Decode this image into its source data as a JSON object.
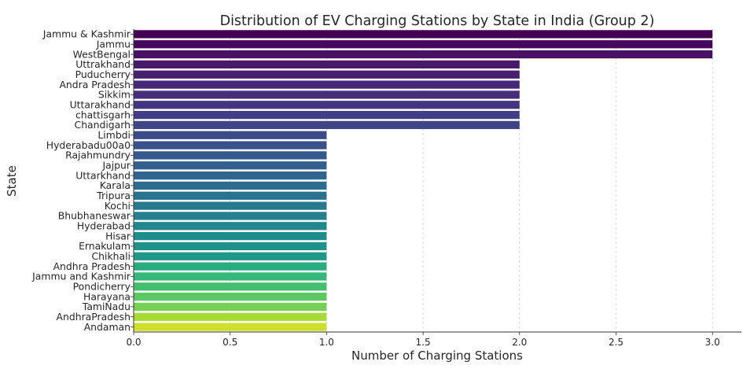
{
  "chart_data": {
    "type": "bar",
    "orientation": "horizontal",
    "title": "Distribution of EV Charging Stations by State in India (Group 2)",
    "xlabel": "Number of Charging Stations",
    "ylabel": "State",
    "xlim": [
      0,
      3.15
    ],
    "x_ticks": [
      "0.0",
      "0.5",
      "1.0",
      "1.5",
      "2.0",
      "2.5",
      "3.0"
    ],
    "grid": "vertical dashed",
    "colormap": "viridis",
    "categories": [
      "Jammu & Kashmir",
      "Jammu",
      "WestBengal",
      "Uttrakhand",
      "Puducherry",
      "Andra Pradesh",
      "Sikkim",
      "Uttarakhand ",
      "chattisgarh",
      "Chandigarh",
      "Limbdi",
      "Hyderabadu00a0",
      "Rajahmundry",
      "Jajpur",
      "Uttarkhand",
      "Karala",
      "Tripura",
      "Kochi",
      "Bhubhaneswar",
      "Hyderabad",
      "Hisar",
      "Ernakulam",
      "Chikhali",
      "Andhra Pradesh ",
      "Jammu and Kashmir",
      "Pondicherry",
      "Harayana",
      "TamiNadu",
      "AndhraPradesh",
      "Andaman"
    ],
    "values": [
      3,
      3,
      3,
      2,
      2,
      2,
      2,
      2,
      2,
      2,
      1,
      1,
      1,
      1,
      1,
      1,
      1,
      1,
      1,
      1,
      1,
      1,
      1,
      1,
      1,
      1,
      1,
      1,
      1,
      1
    ],
    "colors": [
      "#440154",
      "#46085c",
      "#471063",
      "#48186a",
      "#482071",
      "#472777",
      "#462e7c",
      "#443581",
      "#423d84",
      "#3f4487",
      "#3b4b8a",
      "#38528c",
      "#35598d",
      "#325f8d",
      "#2f658e",
      "#2c6c8e",
      "#29728e",
      "#27798e",
      "#24808e",
      "#21868d",
      "#1f8c8c",
      "#1e928a",
      "#1f9887",
      "#27ad81",
      "#35b779",
      "#44bf70",
      "#5cc863",
      "#75d054",
      "#a8db34",
      "#cddf2c"
    ]
  }
}
